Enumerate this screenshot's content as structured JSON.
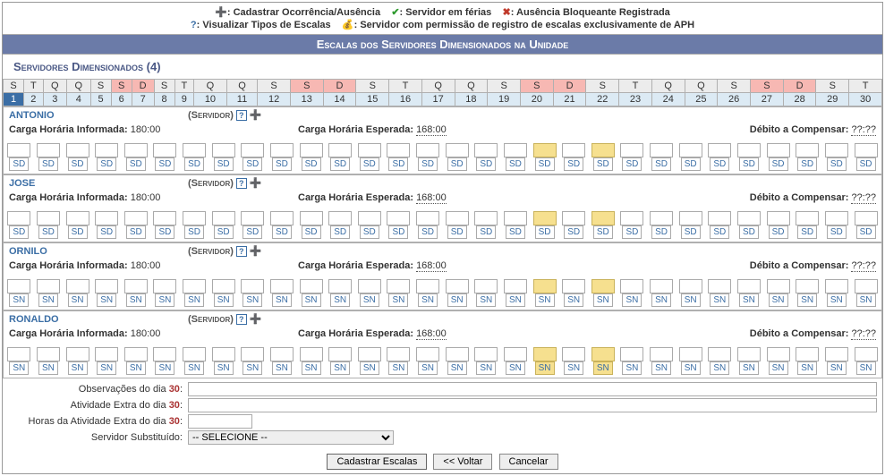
{
  "legend": {
    "row1": [
      {
        "icon": "➕",
        "icon_color": "#2e9a2e",
        "label": ": Cadastrar Ocorrência/Ausência"
      },
      {
        "icon": "✔",
        "icon_color": "#2e9a2e",
        "label": ": Servidor em férias"
      },
      {
        "icon": "✖",
        "icon_color": "#c0392b",
        "label": ": Ausência Bloqueante Registrada"
      }
    ],
    "row2": [
      {
        "icon": "?",
        "icon_color": "#3b6ea5",
        "label": ": Visualizar Tipos de Escalas"
      },
      {
        "icon": "💰",
        "icon_color": "#caa84a",
        "label": ": Servidor com permissão de registro de escalas exclusivamente de APH"
      }
    ]
  },
  "bar_title": "Escalas dos Servidores Dimensionados na Unidade",
  "section_title": "Servidores Dimensionados (4)",
  "calendar": {
    "weekdays": [
      "S",
      "T",
      "Q",
      "Q",
      "S",
      "S",
      "D",
      "S",
      "T",
      "Q",
      "Q",
      "S",
      "S",
      "D",
      "S",
      "T",
      "Q",
      "Q",
      "S",
      "S",
      "D",
      "S",
      "T",
      "Q",
      "Q",
      "S",
      "S",
      "D",
      "S",
      "T"
    ],
    "weekend_idx": [
      5,
      6,
      12,
      13,
      19,
      20,
      26,
      27
    ],
    "days": [
      "1",
      "2",
      "3",
      "4",
      "5",
      "6",
      "7",
      "8",
      "9",
      "10",
      "11",
      "12",
      "13",
      "14",
      "15",
      "16",
      "17",
      "18",
      "19",
      "20",
      "21",
      "22",
      "23",
      "24",
      "25",
      "26",
      "27",
      "28",
      "29",
      "30"
    ],
    "selected_idx": 0
  },
  "labels": {
    "carga_informada": "Carga Horária Informada:",
    "carga_esperada": "Carga Horária Esperada:",
    "debito": "Débito a Compensar:",
    "servidor": "(Servidor)"
  },
  "servidores": [
    {
      "name": "ANTONIO",
      "ci": "180:00",
      "ce": "168:00",
      "dc": "??:??",
      "code": "SD",
      "hl": [
        18,
        20
      ]
    },
    {
      "name": "JOSE",
      "ci": "180:00",
      "ce": "168:00",
      "dc": "??:??",
      "code": "SD",
      "hl": [
        18,
        20
      ]
    },
    {
      "name": "ORNILO",
      "ci": "180:00",
      "ce": "168:00",
      "dc": "??:??",
      "code": "SN",
      "hl": [
        18,
        20
      ]
    },
    {
      "name": "RONALDO",
      "ci": "180:00",
      "ce": "168:00",
      "dc": "??:??",
      "code": "SN",
      "hl": [
        18,
        20
      ],
      "codehl": true
    }
  ],
  "form": {
    "day": "30",
    "obs_label": "Observações do dia ",
    "ativ_label": "Atividade Extra do dia ",
    "horas_label": "Horas da Atividade Extra do dia ",
    "subst_label": "Servidor Substituído:",
    "select_default": "-- SELECIONE --"
  },
  "buttons": {
    "cadastrar": "Cadastrar Escalas",
    "voltar": "<< Voltar",
    "cancelar": "Cancelar"
  },
  "colors": {
    "bar_bg": "#6b7ba8",
    "wkend_bg": "#f7b8b3",
    "day_bg": "#dceaf4",
    "sel_bg": "#3b6ea5",
    "hl_bg": "#f6e08f"
  }
}
